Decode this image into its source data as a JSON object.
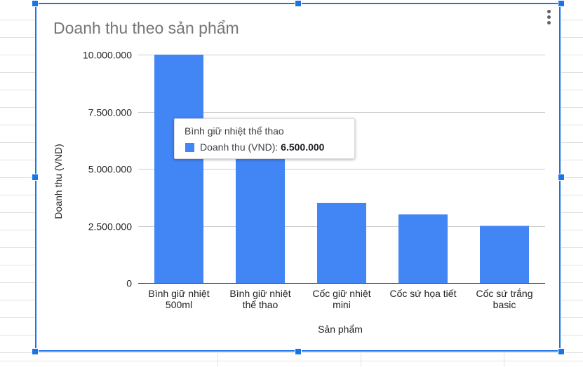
{
  "chart_data": {
    "type": "bar",
    "title": "Doanh thu theo sản phẩm",
    "xlabel": "Sản phẩm",
    "ylabel": "Doanh thu (VND)",
    "categories": [
      [
        "Bình giữ nhiệt",
        "500ml"
      ],
      [
        "Bình giữ nhiệt",
        "thể thao"
      ],
      [
        "Cốc giữ nhiệt",
        "mini"
      ],
      [
        "Cốc sứ họa tiết"
      ],
      [
        "Cốc sứ trắng",
        "basic"
      ]
    ],
    "series": [
      {
        "name": "Doanh thu (VND)",
        "values": [
          10000000,
          6500000,
          3500000,
          3000000,
          2500000
        ]
      }
    ],
    "ylim": [
      0,
      10000000
    ],
    "yticks": [
      0,
      2500000,
      5000000,
      7500000,
      10000000
    ],
    "ytick_labels": [
      "0",
      "2.500.000",
      "5.000.000",
      "7.500.000",
      "10.000.000"
    ],
    "grid": true,
    "bar_color": "#4285f4"
  },
  "tooltip": {
    "title": "Bình giữ nhiệt thể thao",
    "series_label": "Doanh thu (VND):",
    "value": "6.500.000"
  }
}
